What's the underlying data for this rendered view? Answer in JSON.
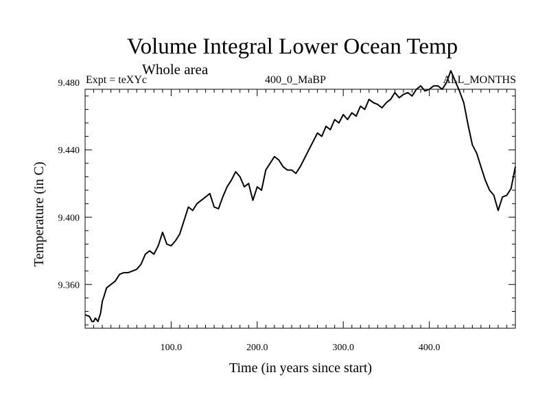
{
  "chart_data": {
    "type": "line",
    "title": "Volume Integral Lower Ocean Temp",
    "subtitle": "Whole area",
    "header_left": "Expt = teXYc",
    "header_center": "400_0_MaBP",
    "header_right": "ALL_MONTHS",
    "xlabel": "Time (in years since start)",
    "ylabel": "Temperature (in C)",
    "xlim": [
      0,
      500
    ],
    "ylim": [
      9.334,
      9.476
    ],
    "x_ticks": [
      100,
      200,
      300,
      400
    ],
    "x_tick_labels": [
      "100.0",
      "200.0",
      "300.0",
      "400.0"
    ],
    "y_ticks": [
      9.36,
      9.4,
      9.44,
      9.48
    ],
    "y_tick_labels": [
      "9.360",
      "9.400",
      "9.440",
      "9.480"
    ],
    "grid": false,
    "series": [
      {
        "color": "#000000",
        "x": [
          0,
          5,
          8,
          10,
          12,
          15,
          18,
          20,
          22,
          25,
          30,
          35,
          40,
          45,
          50,
          55,
          60,
          65,
          70,
          75,
          80,
          85,
          90,
          95,
          100,
          105,
          110,
          115,
          120,
          125,
          130,
          135,
          140,
          145,
          150,
          155,
          160,
          165,
          170,
          175,
          180,
          185,
          190,
          195,
          200,
          205,
          210,
          215,
          220,
          225,
          230,
          235,
          240,
          245,
          250,
          255,
          260,
          265,
          270,
          275,
          280,
          285,
          290,
          295,
          300,
          305,
          310,
          315,
          320,
          325,
          330,
          335,
          340,
          345,
          350,
          355,
          360,
          365,
          370,
          375,
          380,
          385,
          390,
          395,
          400,
          405,
          410,
          415,
          420,
          425,
          430,
          435,
          440,
          445,
          450,
          455,
          460,
          465,
          470,
          475,
          480,
          485,
          490,
          495,
          500
        ],
        "y": [
          9.342,
          9.341,
          9.338,
          9.338,
          9.34,
          9.338,
          9.343,
          9.35,
          9.353,
          9.358,
          9.36,
          9.362,
          9.366,
          9.367,
          9.367,
          9.368,
          9.369,
          9.372,
          9.378,
          9.38,
          9.378,
          9.383,
          9.391,
          9.384,
          9.383,
          9.386,
          9.39,
          9.398,
          9.406,
          9.404,
          9.408,
          9.41,
          9.412,
          9.414,
          9.406,
          9.405,
          9.412,
          9.418,
          9.422,
          9.427,
          9.424,
          9.418,
          9.42,
          9.41,
          9.418,
          9.416,
          9.428,
          9.432,
          9.436,
          9.434,
          9.43,
          9.428,
          9.428,
          9.426,
          9.43,
          9.435,
          9.44,
          9.445,
          9.45,
          9.448,
          9.454,
          9.452,
          9.458,
          9.456,
          9.461,
          9.458,
          9.462,
          9.46,
          9.466,
          9.464,
          9.47,
          9.468,
          9.467,
          9.465,
          9.468,
          9.47,
          9.474,
          9.471,
          9.473,
          9.474,
          9.472,
          9.476,
          9.478,
          9.475,
          9.476,
          9.478,
          9.478,
          9.476,
          9.48,
          9.487,
          9.481,
          9.475,
          9.468,
          9.455,
          9.443,
          9.438,
          9.43,
          9.422,
          9.416,
          9.413,
          9.404,
          9.412,
          9.413,
          9.417,
          9.43
        ]
      }
    ]
  }
}
